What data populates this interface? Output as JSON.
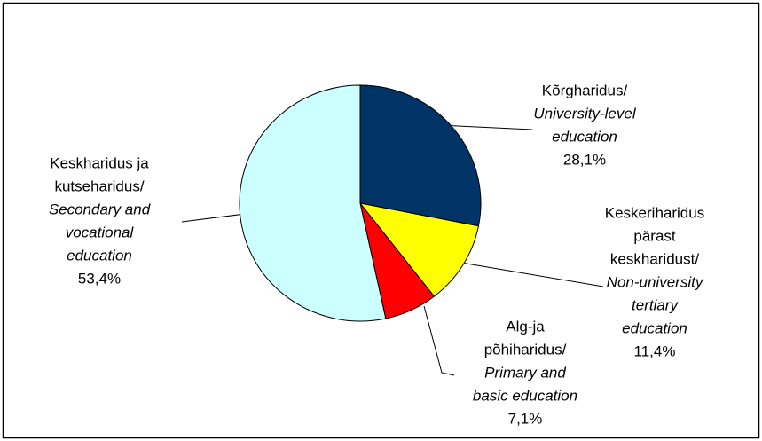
{
  "chart_data": {
    "type": "pie",
    "categories": [
      [
        "Kõrgharidus/"
      ],
      [
        "Keskeriharidus",
        "pärast",
        "keskharidust/"
      ],
      [
        "Alg-ja",
        "põhiharidus/"
      ],
      [
        "Keskharidus ja",
        "kutseharidus/"
      ]
    ],
    "categories_en": [
      [
        "University-level",
        "education"
      ],
      [
        "Non-university",
        "tertiary",
        "education"
      ],
      [
        "Primary and",
        "basic education"
      ],
      [
        "Secondary and",
        "vocational",
        "education"
      ]
    ],
    "values": [
      28.1,
      11.4,
      7.1,
      53.4
    ],
    "value_labels": [
      "28,1%",
      "11,4%",
      "7,1%",
      "53,4%"
    ],
    "colors": [
      "#003366",
      "#ffff00",
      "#ff0000",
      "#ccffff"
    ]
  }
}
